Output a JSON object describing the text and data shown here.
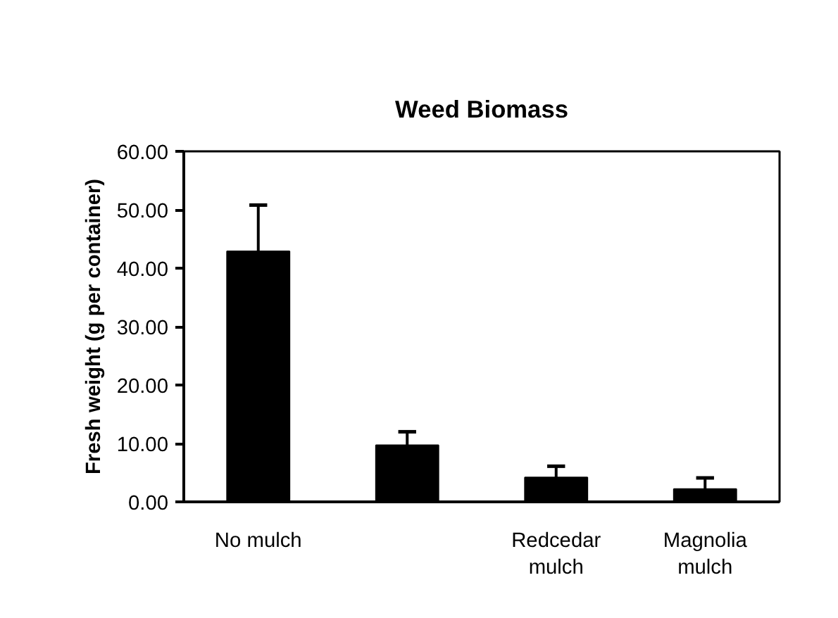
{
  "chart_data": {
    "type": "bar",
    "title": "Weed Biomass",
    "ylabel": "Fresh weight (g per container)",
    "categories": [
      "No mulch",
      null,
      "Redcedar\nmulch",
      "Magnolia\nmulch"
    ],
    "values": [
      42.9,
      9.7,
      4.2,
      2.2
    ],
    "errors": [
      7.9,
      2.3,
      1.9,
      1.9
    ],
    "color": "#000000",
    "ylim": [
      0,
      60
    ],
    "yticks": [
      {
        "value": 0,
        "label": "0.00"
      },
      {
        "value": 10,
        "label": "10.00"
      },
      {
        "value": 20,
        "label": "20.00"
      },
      {
        "value": 30,
        "label": "30.00"
      },
      {
        "value": 40,
        "label": "40.00"
      },
      {
        "value": 50,
        "label": "50.00"
      },
      {
        "value": 60,
        "label": "60.00"
      }
    ],
    "grid": false
  }
}
